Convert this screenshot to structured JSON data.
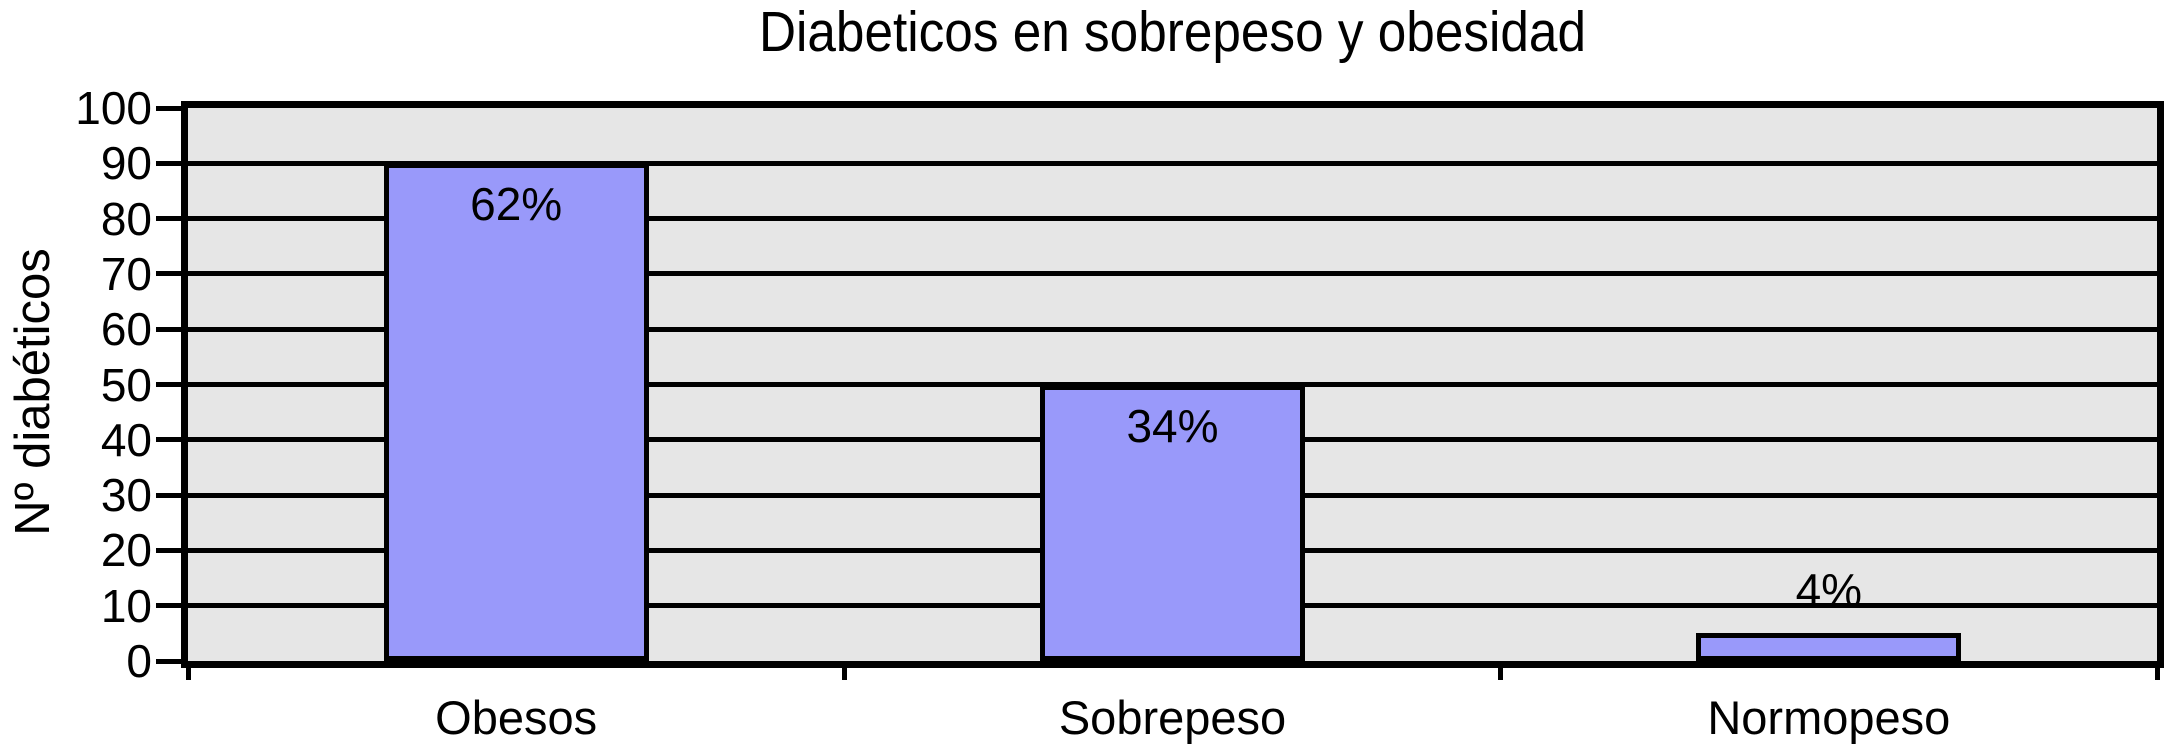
{
  "chart_data": {
    "type": "bar",
    "title": "Diabeticos en sobrepeso y obesidad",
    "ylabel": "Nº diabéticos",
    "xlabel": "",
    "categories": [
      "Obesos",
      "Sobrepeso",
      "Normopeso"
    ],
    "values": [
      90,
      50,
      5
    ],
    "bar_labels": [
      "62%",
      "34%",
      "4%"
    ],
    "bar_label_placement": [
      "inside",
      "inside",
      "outside"
    ],
    "ylim": [
      0,
      100
    ],
    "yticks": [
      0,
      10,
      20,
      30,
      40,
      50,
      60,
      70,
      80,
      90,
      100
    ],
    "grid": "horizontal-black",
    "legend": "none",
    "colors": {
      "bar_fill": "#9999FA",
      "bar_border": "#000000",
      "plot_background": "#E6E6E6",
      "gridline": "#000000",
      "text": "#000000",
      "page_background": "#FFFFFF"
    }
  }
}
